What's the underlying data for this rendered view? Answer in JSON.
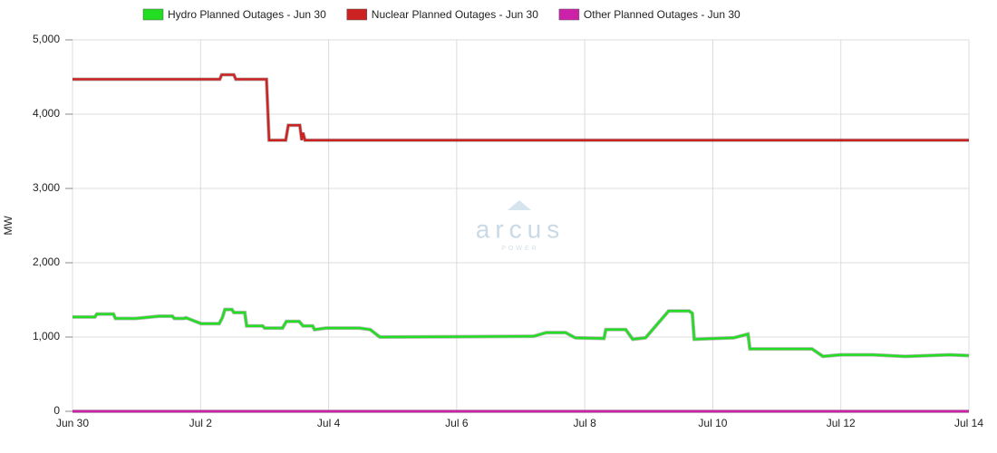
{
  "chart_data": {
    "type": "line",
    "y_label": "MW",
    "watermark": {
      "text": "arcus",
      "subtext": "POWER"
    },
    "xlim": [
      0,
      14
    ],
    "xticks": [
      {
        "value": 0,
        "label": "Jun 30"
      },
      {
        "value": 2,
        "label": "Jul 2"
      },
      {
        "value": 4,
        "label": "Jul 4"
      },
      {
        "value": 6,
        "label": "Jul 6"
      },
      {
        "value": 8,
        "label": "Jul 8"
      },
      {
        "value": 10,
        "label": "Jul 10"
      },
      {
        "value": 12,
        "label": "Jul 12"
      },
      {
        "value": 14,
        "label": "Jul 14"
      }
    ],
    "ylim": [
      0,
      5000
    ],
    "yticks": [
      0,
      {
        "value": 1000,
        "label": "1,000"
      },
      {
        "value": 2000,
        "label": "2,000"
      },
      {
        "value": 3000,
        "label": "3,000"
      },
      {
        "value": 4000,
        "label": "4,000"
      },
      {
        "value": 5000,
        "label": "5,000"
      }
    ],
    "grid": true,
    "legend": "top",
    "series": [
      {
        "name": "Hydro Planned Outages - Jun 30",
        "color": "#22dd22",
        "x": [
          0,
          0.35,
          0.38,
          0.64,
          0.67,
          0.99,
          1.35,
          1.56,
          1.59,
          1.74,
          1.77,
          2.01,
          2.29,
          2.34,
          2.38,
          2.49,
          2.52,
          2.69,
          2.72,
          2.97,
          3.0,
          3.28,
          3.34,
          3.54,
          3.6,
          3.75,
          3.78,
          3.96,
          4.48,
          4.65,
          4.8,
          7.2,
          7.4,
          7.7,
          7.85,
          8.3,
          8.33,
          8.64,
          8.75,
          8.95,
          9.31,
          9.63,
          9.68,
          9.71,
          10.33,
          10.55,
          10.58,
          11.55,
          11.72,
          12.0,
          12.5,
          13.0,
          13.7,
          14.0
        ],
        "values": [
          1270,
          1270,
          1310,
          1310,
          1250,
          1250,
          1280,
          1280,
          1250,
          1250,
          1260,
          1180,
          1180,
          1260,
          1370,
          1370,
          1330,
          1330,
          1150,
          1150,
          1120,
          1120,
          1210,
          1210,
          1150,
          1150,
          1100,
          1120,
          1120,
          1100,
          1000,
          1010,
          1060,
          1060,
          990,
          980,
          1100,
          1100,
          970,
          990,
          1350,
          1350,
          1320,
          970,
          990,
          1040,
          840,
          840,
          740,
          760,
          760,
          740,
          760,
          750
        ]
      },
      {
        "name": "Nuclear Planned Outages - Jun 30",
        "color": "#cc2222",
        "x": [
          0,
          2.3,
          2.33,
          2.52,
          2.55,
          3.03,
          3.07,
          3.33,
          3.37,
          3.55,
          3.58,
          3.6,
          3.63,
          14
        ],
        "values": [
          4470,
          4470,
          4530,
          4530,
          4470,
          4470,
          3650,
          3650,
          3850,
          3850,
          3650,
          3750,
          3650,
          3650
        ]
      },
      {
        "name": "Other Planned Outages - Jun 30",
        "color": "#cc22aa",
        "x": [
          0,
          14
        ],
        "values": [
          0,
          0
        ]
      }
    ]
  }
}
